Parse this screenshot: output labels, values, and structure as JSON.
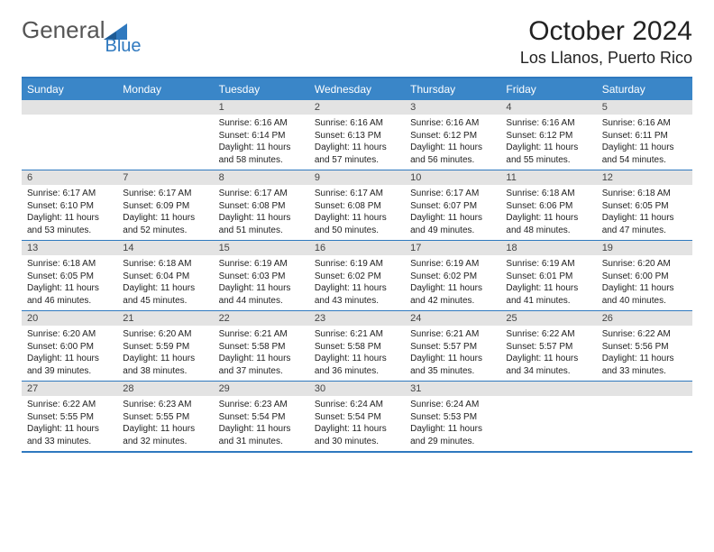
{
  "logo": {
    "textA": "General",
    "textB": "Blue"
  },
  "title": "October 2024",
  "location": "Los Llanos, Puerto Rico",
  "colors": {
    "header_bg": "#3a86c8",
    "border": "#2f79bf",
    "daynum_bg": "#e3e3e3",
    "text": "#222222",
    "logo_gray": "#555555",
    "logo_blue": "#2f79bf"
  },
  "dayNames": [
    "Sunday",
    "Monday",
    "Tuesday",
    "Wednesday",
    "Thursday",
    "Friday",
    "Saturday"
  ],
  "weeks": [
    [
      null,
      null,
      {
        "n": "1",
        "sr": "6:16 AM",
        "ss": "6:14 PM",
        "dl": "11 hours and 58 minutes."
      },
      {
        "n": "2",
        "sr": "6:16 AM",
        "ss": "6:13 PM",
        "dl": "11 hours and 57 minutes."
      },
      {
        "n": "3",
        "sr": "6:16 AM",
        "ss": "6:12 PM",
        "dl": "11 hours and 56 minutes."
      },
      {
        "n": "4",
        "sr": "6:16 AM",
        "ss": "6:12 PM",
        "dl": "11 hours and 55 minutes."
      },
      {
        "n": "5",
        "sr": "6:16 AM",
        "ss": "6:11 PM",
        "dl": "11 hours and 54 minutes."
      }
    ],
    [
      {
        "n": "6",
        "sr": "6:17 AM",
        "ss": "6:10 PM",
        "dl": "11 hours and 53 minutes."
      },
      {
        "n": "7",
        "sr": "6:17 AM",
        "ss": "6:09 PM",
        "dl": "11 hours and 52 minutes."
      },
      {
        "n": "8",
        "sr": "6:17 AM",
        "ss": "6:08 PM",
        "dl": "11 hours and 51 minutes."
      },
      {
        "n": "9",
        "sr": "6:17 AM",
        "ss": "6:08 PM",
        "dl": "11 hours and 50 minutes."
      },
      {
        "n": "10",
        "sr": "6:17 AM",
        "ss": "6:07 PM",
        "dl": "11 hours and 49 minutes."
      },
      {
        "n": "11",
        "sr": "6:18 AM",
        "ss": "6:06 PM",
        "dl": "11 hours and 48 minutes."
      },
      {
        "n": "12",
        "sr": "6:18 AM",
        "ss": "6:05 PM",
        "dl": "11 hours and 47 minutes."
      }
    ],
    [
      {
        "n": "13",
        "sr": "6:18 AM",
        "ss": "6:05 PM",
        "dl": "11 hours and 46 minutes."
      },
      {
        "n": "14",
        "sr": "6:18 AM",
        "ss": "6:04 PM",
        "dl": "11 hours and 45 minutes."
      },
      {
        "n": "15",
        "sr": "6:19 AM",
        "ss": "6:03 PM",
        "dl": "11 hours and 44 minutes."
      },
      {
        "n": "16",
        "sr": "6:19 AM",
        "ss": "6:02 PM",
        "dl": "11 hours and 43 minutes."
      },
      {
        "n": "17",
        "sr": "6:19 AM",
        "ss": "6:02 PM",
        "dl": "11 hours and 42 minutes."
      },
      {
        "n": "18",
        "sr": "6:19 AM",
        "ss": "6:01 PM",
        "dl": "11 hours and 41 minutes."
      },
      {
        "n": "19",
        "sr": "6:20 AM",
        "ss": "6:00 PM",
        "dl": "11 hours and 40 minutes."
      }
    ],
    [
      {
        "n": "20",
        "sr": "6:20 AM",
        "ss": "6:00 PM",
        "dl": "11 hours and 39 minutes."
      },
      {
        "n": "21",
        "sr": "6:20 AM",
        "ss": "5:59 PM",
        "dl": "11 hours and 38 minutes."
      },
      {
        "n": "22",
        "sr": "6:21 AM",
        "ss": "5:58 PM",
        "dl": "11 hours and 37 minutes."
      },
      {
        "n": "23",
        "sr": "6:21 AM",
        "ss": "5:58 PM",
        "dl": "11 hours and 36 minutes."
      },
      {
        "n": "24",
        "sr": "6:21 AM",
        "ss": "5:57 PM",
        "dl": "11 hours and 35 minutes."
      },
      {
        "n": "25",
        "sr": "6:22 AM",
        "ss": "5:57 PM",
        "dl": "11 hours and 34 minutes."
      },
      {
        "n": "26",
        "sr": "6:22 AM",
        "ss": "5:56 PM",
        "dl": "11 hours and 33 minutes."
      }
    ],
    [
      {
        "n": "27",
        "sr": "6:22 AM",
        "ss": "5:55 PM",
        "dl": "11 hours and 33 minutes."
      },
      {
        "n": "28",
        "sr": "6:23 AM",
        "ss": "5:55 PM",
        "dl": "11 hours and 32 minutes."
      },
      {
        "n": "29",
        "sr": "6:23 AM",
        "ss": "5:54 PM",
        "dl": "11 hours and 31 minutes."
      },
      {
        "n": "30",
        "sr": "6:24 AM",
        "ss": "5:54 PM",
        "dl": "11 hours and 30 minutes."
      },
      {
        "n": "31",
        "sr": "6:24 AM",
        "ss": "5:53 PM",
        "dl": "11 hours and 29 minutes."
      },
      null,
      null
    ]
  ],
  "labels": {
    "sunrise": "Sunrise:",
    "sunset": "Sunset:",
    "daylight": "Daylight:"
  }
}
